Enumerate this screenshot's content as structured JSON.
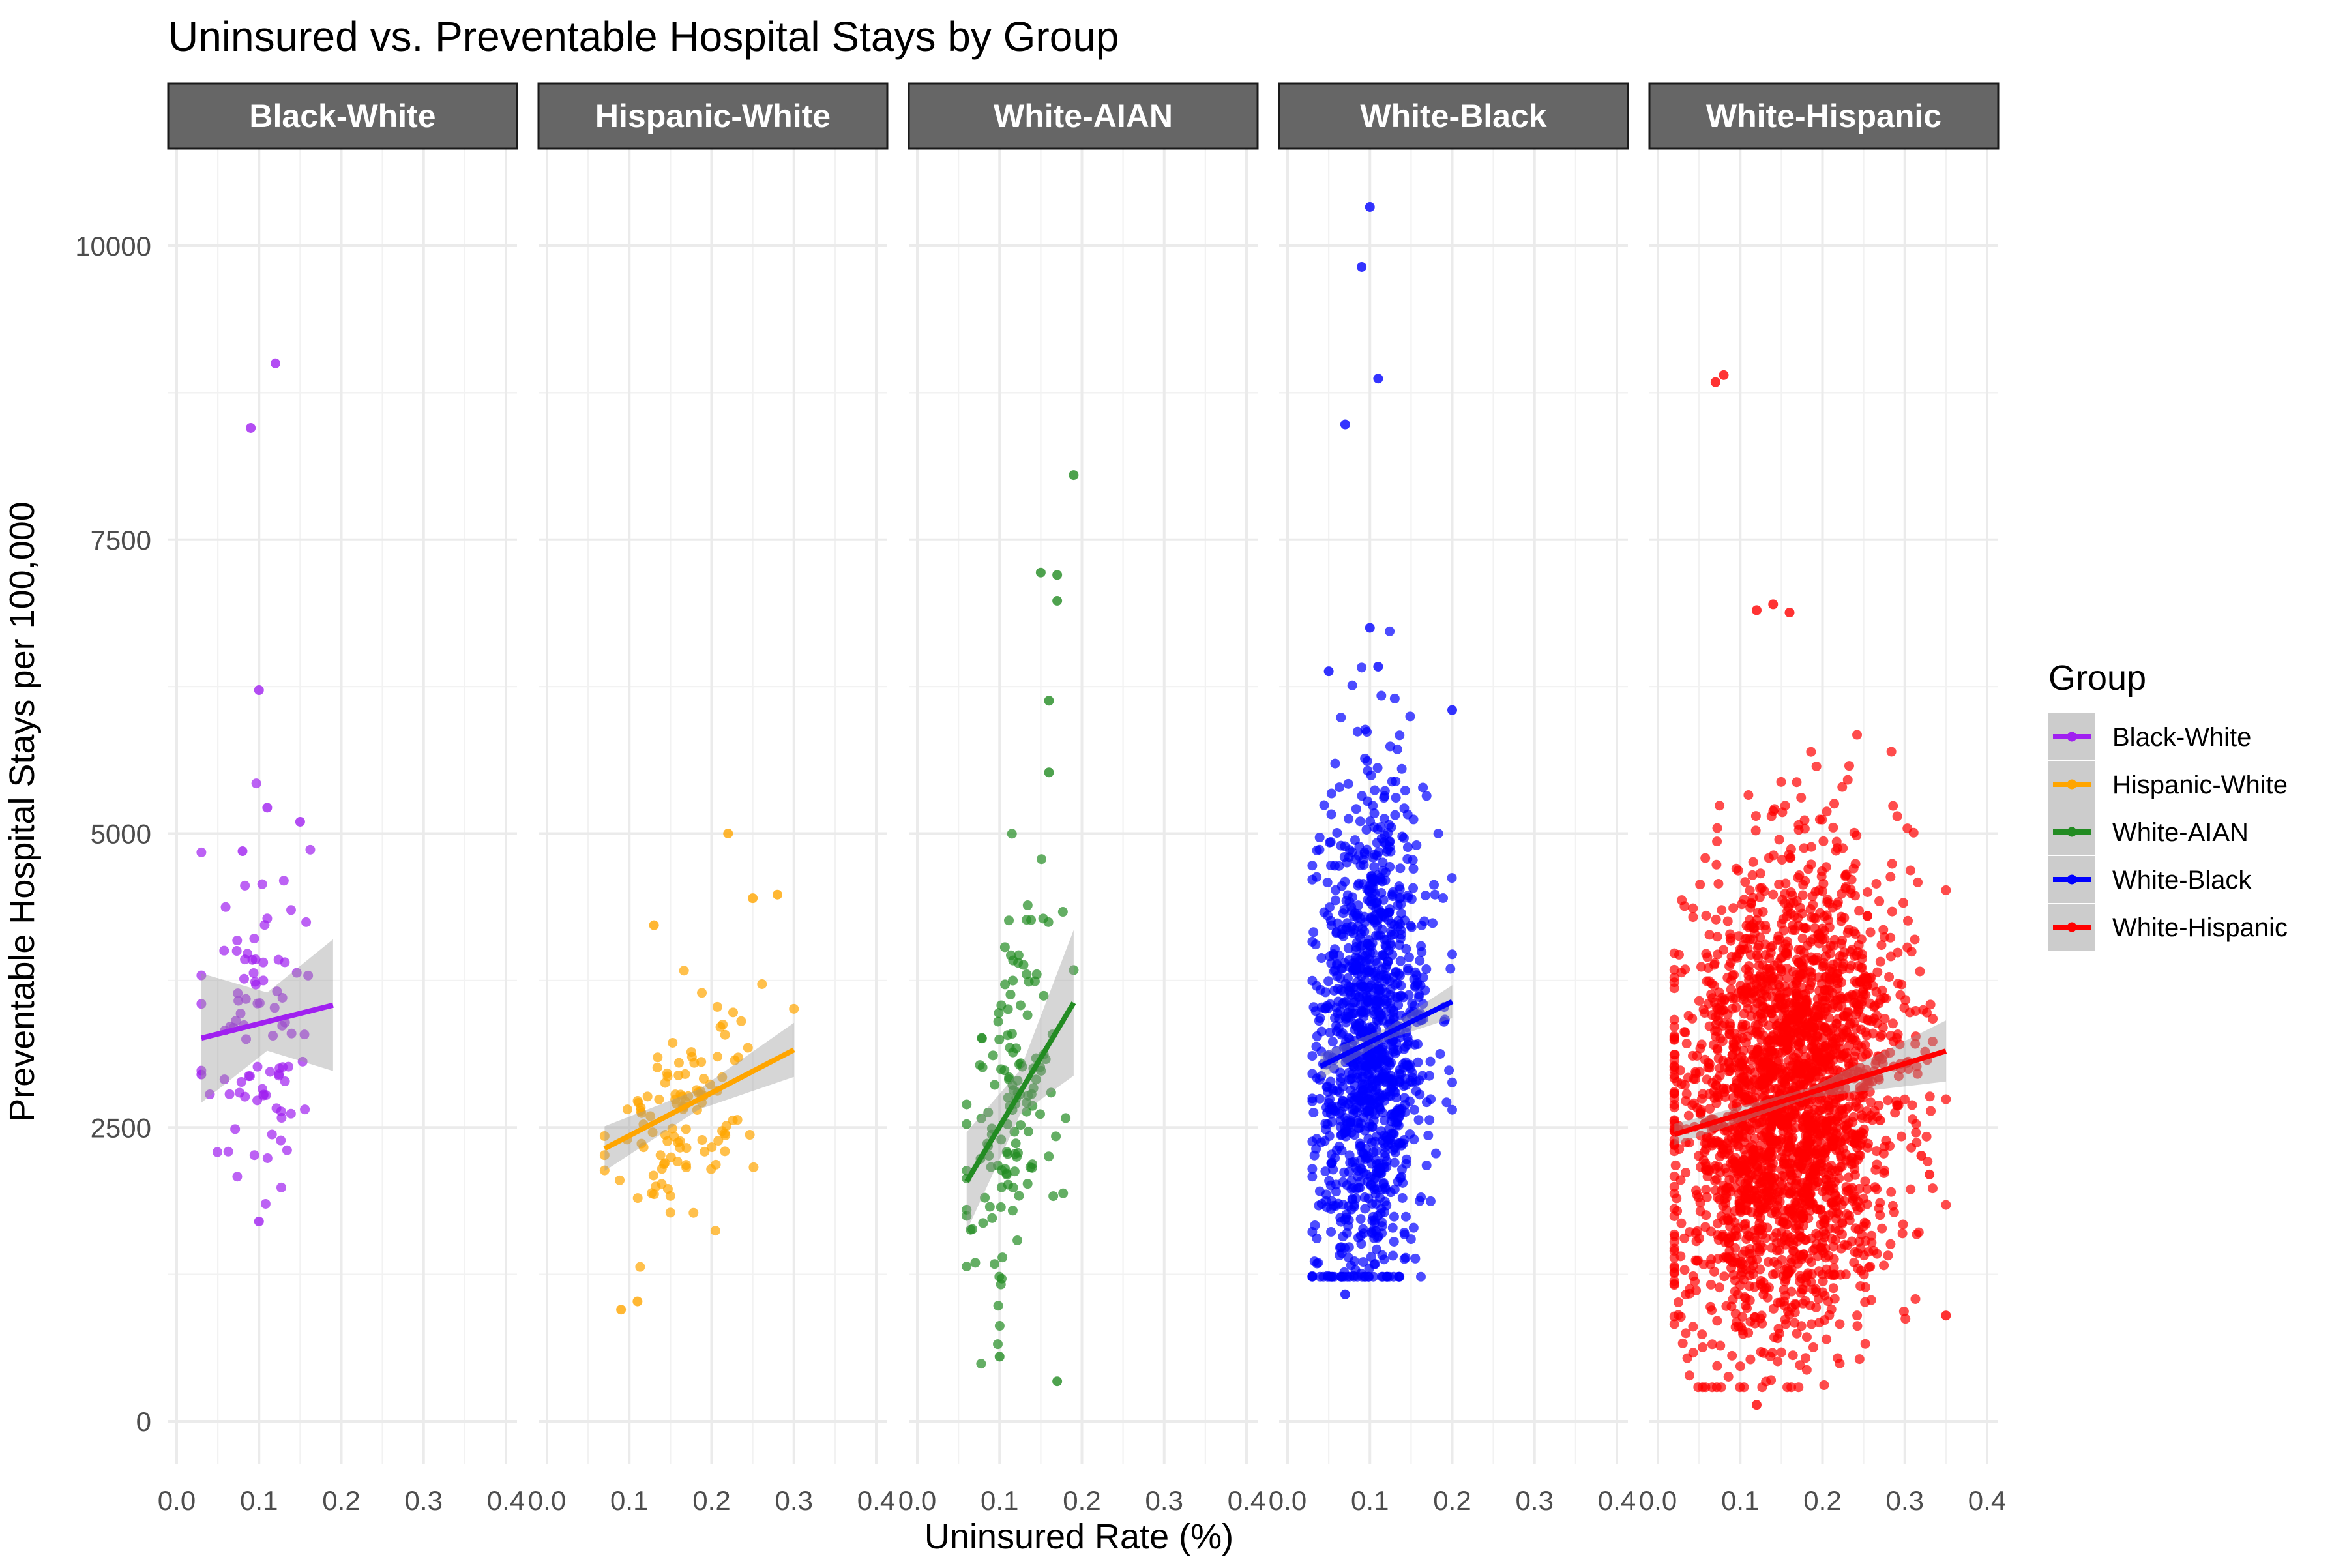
{
  "chart_data": {
    "type": "scatter",
    "title": "Uninsured vs. Preventable Hospital Stays by Group",
    "xlabel": "Uninsured Rate (%)",
    "ylabel": "Preventable Hospital Stays per 100,000",
    "xlim": [
      0.0,
      0.4
    ],
    "ylim": [
      0,
      10000
    ],
    "x_tick_labels": [
      "0.0",
      "0.1",
      "0.2",
      "0.3",
      "0.4"
    ],
    "y_tick_labels": [
      "0",
      "2500",
      "5000",
      "7500",
      "10000"
    ],
    "grid": true,
    "legend": {
      "title": "Group",
      "position": "right"
    },
    "facets": [
      {
        "name": "Black-White",
        "color": "#a020f0",
        "trend": {
          "x": [
            0.03,
            0.19
          ],
          "y": [
            3260,
            3540
          ],
          "band_halfwidth": [
            550,
            560
          ]
        },
        "summary": {
          "x_range": [
            0.03,
            0.19
          ],
          "y_range": [
            1700,
            9000
          ],
          "approx_points": 90
        },
        "notable_points": [
          {
            "x": 0.12,
            "y": 9000
          },
          {
            "x": 0.09,
            "y": 8450
          },
          {
            "x": 0.1,
            "y": 6220
          },
          {
            "x": 0.11,
            "y": 5220
          },
          {
            "x": 0.15,
            "y": 5100
          },
          {
            "x": 0.08,
            "y": 4850
          },
          {
            "x": 0.1,
            "y": 1700
          },
          {
            "x": 0.03,
            "y": 2950
          }
        ]
      },
      {
        "name": "Hispanic-White",
        "color": "#ffa500",
        "trend": {
          "x": [
            0.07,
            0.3
          ],
          "y": [
            2320,
            3160
          ],
          "band_halfwidth": [
            190,
            230
          ]
        },
        "summary": {
          "x_range": [
            0.07,
            0.3
          ],
          "y_range": [
            950,
            5000
          ],
          "approx_points": 110
        },
        "notable_points": [
          {
            "x": 0.22,
            "y": 5000
          },
          {
            "x": 0.28,
            "y": 4480
          },
          {
            "x": 0.25,
            "y": 4450
          },
          {
            "x": 0.13,
            "y": 4220
          },
          {
            "x": 0.09,
            "y": 950
          },
          {
            "x": 0.11,
            "y": 1020
          }
        ]
      },
      {
        "name": "White-AIAN",
        "color": "#228b22",
        "trend": {
          "x": [
            0.06,
            0.19
          ],
          "y": [
            2040,
            3560
          ],
          "band_halfwidth": [
            420,
            620
          ]
        },
        "summary": {
          "x_range": [
            0.06,
            0.2
          ],
          "y_range": [
            340,
            8050
          ],
          "approx_points": 140
        },
        "notable_points": [
          {
            "x": 0.19,
            "y": 8050
          },
          {
            "x": 0.15,
            "y": 7220
          },
          {
            "x": 0.17,
            "y": 7200
          },
          {
            "x": 0.17,
            "y": 6980
          },
          {
            "x": 0.16,
            "y": 6130
          },
          {
            "x": 0.16,
            "y": 5520
          },
          {
            "x": 0.1,
            "y": 550
          },
          {
            "x": 0.17,
            "y": 340
          }
        ]
      },
      {
        "name": "White-Black",
        "color": "#0000ff",
        "trend": {
          "x": [
            0.04,
            0.2
          ],
          "y": [
            3020,
            3570
          ],
          "band_halfwidth": [
            110,
            140
          ]
        },
        "summary": {
          "x_range": [
            0.03,
            0.2
          ],
          "y_range": [
            1080,
            10330
          ],
          "approx_points": 1200
        },
        "notable_points": [
          {
            "x": 0.1,
            "y": 10330
          },
          {
            "x": 0.09,
            "y": 9820
          },
          {
            "x": 0.11,
            "y": 8870
          },
          {
            "x": 0.07,
            "y": 8480
          },
          {
            "x": 0.1,
            "y": 6750
          },
          {
            "x": 0.11,
            "y": 6420
          },
          {
            "x": 0.05,
            "y": 6380
          },
          {
            "x": 0.2,
            "y": 6050
          },
          {
            "x": 0.07,
            "y": 1080
          }
        ]
      },
      {
        "name": "White-Hispanic",
        "color": "#ff0000",
        "trend": {
          "x": [
            0.02,
            0.35
          ],
          "y": [
            2440,
            3150
          ],
          "band_halfwidth": [
            90,
            260
          ]
        },
        "summary": {
          "x_range": [
            0.02,
            0.35
          ],
          "y_range": [
            140,
            8900
          ],
          "approx_points": 2600
        },
        "notable_points": [
          {
            "x": 0.08,
            "y": 8900
          },
          {
            "x": 0.07,
            "y": 8840
          },
          {
            "x": 0.14,
            "y": 6950
          },
          {
            "x": 0.16,
            "y": 6880
          },
          {
            "x": 0.12,
            "y": 6900
          },
          {
            "x": 0.32,
            "y": 2260
          },
          {
            "x": 0.33,
            "y": 2100
          },
          {
            "x": 0.35,
            "y": 900
          },
          {
            "x": 0.12,
            "y": 140
          },
          {
            "x": 0.27,
            "y": 2560
          }
        ]
      }
    ]
  }
}
